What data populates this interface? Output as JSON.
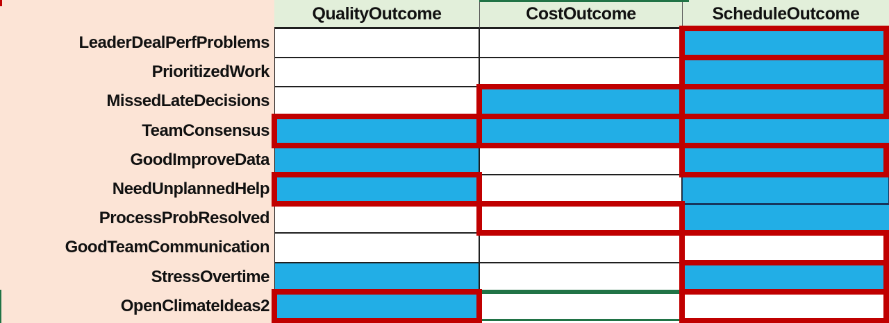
{
  "figure_title": "",
  "table": {
    "columns": [
      "QualityOutcome",
      "CostOutcome",
      "ScheduleOutcome"
    ],
    "rows": [
      {
        "label": "LeaderDealPerfProblems",
        "cells": {
          "quality": "white",
          "cost": "white",
          "schedule": "boxedBlue"
        }
      },
      {
        "label": "PrioritizedWork",
        "cells": {
          "quality": "white",
          "cost": "white",
          "schedule": "boxedBlue"
        }
      },
      {
        "label": "MissedLateDecisions",
        "cells": {
          "quality": "white",
          "cost": "boxedBlue",
          "schedule": "boxedBlue"
        }
      },
      {
        "label": "TeamConsensus",
        "cells": {
          "quality": "boxedBlue",
          "cost": "boxedBlue",
          "schedule": "boxedBlueOpenRight"
        }
      },
      {
        "label": "GoodImproveData",
        "cells": {
          "quality": "blue",
          "cost": "white",
          "schedule": "boxedBlue"
        }
      },
      {
        "label": "NeedUnplannedHelp",
        "cells": {
          "quality": "boxedBlue",
          "cost": "white",
          "schedule": "blue"
        }
      },
      {
        "label": "ProcessProbResolved",
        "cells": {
          "quality": "white",
          "cost": "boxedWhite",
          "schedule": "blueRedBottom"
        }
      },
      {
        "label": "GoodTeamCommunication",
        "cells": {
          "quality": "white",
          "cost": "white",
          "schedule": "boxedWhite"
        }
      },
      {
        "label": "StressOvertime",
        "cells": {
          "quality": "blue",
          "cost": "whiteGreenBottom",
          "schedule": "boxedBlue"
        }
      },
      {
        "label": "OpenClimateIdeas2",
        "cells": {
          "quality": "boxedBlue",
          "cost": "whiteGreenTopBottom",
          "schedule": "boxedWhite"
        }
      }
    ]
  },
  "colors": {
    "cell_fill_blue": "#22AEE6",
    "highlight_box_red": "#C00000",
    "header_green": "#E2EFDA",
    "label_peach": "#FCE4D6",
    "grid_dark_green": "#217346",
    "gridline_dark": "#1F1F1F",
    "thin_navy_line": "#17365D",
    "text": "#111111"
  },
  "chart_data": {
    "type": "heatmap",
    "title": "",
    "x_categories": [
      "QualityOutcome",
      "CostOutcome",
      "ScheduleOutcome"
    ],
    "y_categories": [
      "LeaderDealPerfProblems",
      "PrioritizedWork",
      "MissedLateDecisions",
      "TeamConsensus",
      "GoodImproveData",
      "NeedUnplannedHelp",
      "ProcessProbResolved",
      "GoodTeamCommunication",
      "StressOvertime",
      "OpenClimateIdeas2"
    ],
    "filled_blue": [
      [
        0,
        0,
        1
      ],
      [
        0,
        0,
        1
      ],
      [
        0,
        1,
        1
      ],
      [
        1,
        1,
        1
      ],
      [
        1,
        0,
        1
      ],
      [
        1,
        0,
        1
      ],
      [
        0,
        0,
        1
      ],
      [
        0,
        0,
        0
      ],
      [
        1,
        0,
        1
      ],
      [
        1,
        0,
        0
      ]
    ],
    "red_boxed": [
      [
        0,
        0,
        1
      ],
      [
        0,
        0,
        1
      ],
      [
        0,
        1,
        1
      ],
      [
        1,
        1,
        1
      ],
      [
        0,
        0,
        1
      ],
      [
        1,
        0,
        0
      ],
      [
        0,
        1,
        1
      ],
      [
        0,
        0,
        1
      ],
      [
        0,
        0,
        1
      ],
      [
        1,
        0,
        1
      ]
    ],
    "legend": "filled_blue: 1 = cell filled sky-blue; red_boxed: 1 = cell outlined with thick dark-red border"
  }
}
